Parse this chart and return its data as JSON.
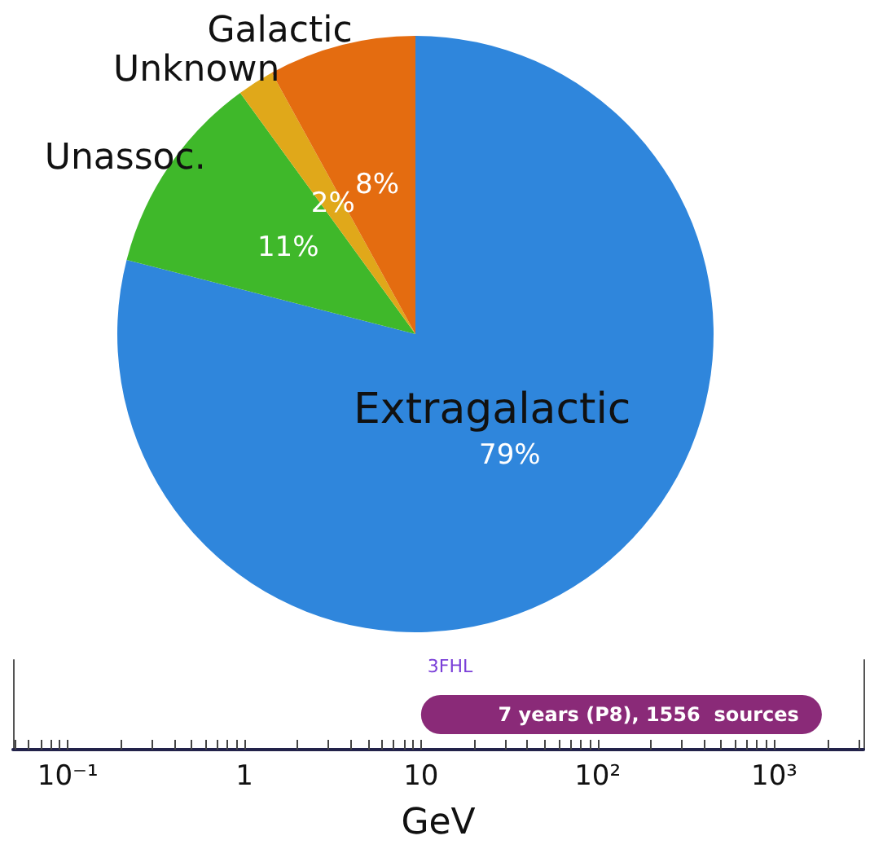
{
  "chart_data": [
    {
      "type": "pie",
      "categories": [
        "Extragalactic",
        "Unassoc.",
        "Unknown",
        "Galactic"
      ],
      "values": [
        79,
        11,
        2,
        8
      ],
      "colors": [
        "#2f86dc",
        "#3fb82a",
        "#e0a81a",
        "#e46c10"
      ],
      "value_labels": [
        "79%",
        "11%",
        "2%",
        "8%"
      ]
    },
    {
      "type": "bar",
      "orientation": "horizontal",
      "log": "x",
      "categories": [
        null
      ],
      "series": [
        {
          "name": "3FHL",
          "color": "#8a2a78",
          "values": [
            1850
          ],
          "base": [
            10
          ]
        }
      ],
      "annotations": [
        "7 years (P8), 1556  sources"
      ],
      "xlim": [
        0.049,
        3200
      ],
      "xticks": [
        {
          "value": 0.1,
          "label": "10⁻¹"
        },
        1,
        10,
        {
          "value": 100,
          "label": "10²"
        },
        {
          "value": 1000,
          "label": "10³"
        }
      ],
      "xlabel": "GeV"
    }
  ]
}
